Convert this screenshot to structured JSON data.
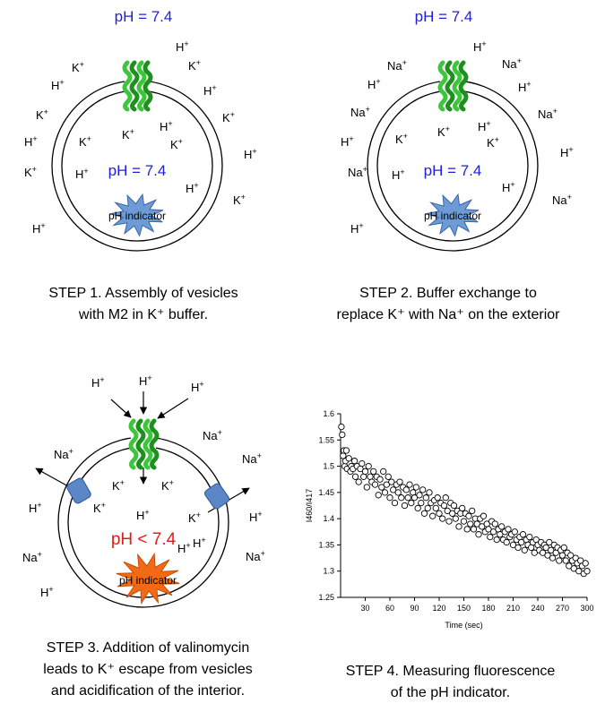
{
  "labels": {
    "ph_outside": "pH = 7.4",
    "ph_inside": "pH = 7.4",
    "ph_acidic": "pH < 7.4",
    "indicator": "pH indicator",
    "h": "H",
    "k": "K",
    "na": "Na",
    "plus": "+"
  },
  "colors": {
    "ph_blue": "#1f1fd6",
    "ph_red": "#e21b1b",
    "helix_green": "#3cc63c",
    "indicator_blue": "#6d9bd6",
    "indicator_orange": "#f26a15",
    "valinomycin_blue": "#5b87c9"
  },
  "captions": {
    "step1": [
      "STEP 1.  Assembly of vesicles",
      "with M2 in K⁺ buffer."
    ],
    "step2": [
      "STEP 2. Buffer exchange to",
      "replace K⁺ with Na⁺ on the exterior"
    ],
    "step3": [
      "STEP 3. Addition of valinomycin",
      "leads to K⁺ escape from vesicles",
      "and acidification of the interior."
    ],
    "step4": [
      "STEP 4. Measuring fluorescence",
      "of the pH indicator."
    ]
  },
  "chart_data": {
    "type": "scatter",
    "title": "",
    "xlabel": "Time (sec)",
    "ylabel": "I460/I417",
    "xlim": [
      0,
      300
    ],
    "ylim": [
      1.25,
      1.6
    ],
    "xticks": [
      30,
      60,
      90,
      120,
      150,
      180,
      210,
      240,
      270,
      300
    ],
    "yticks": [
      1.25,
      1.3,
      1.35,
      1.4,
      1.45,
      1.5,
      1.55,
      1.6
    ],
    "grid": false,
    "marker": "open-circle",
    "series": [
      {
        "points": [
          [
            1,
            1.575
          ],
          [
            2,
            1.56
          ],
          [
            3,
            1.52
          ],
          [
            4,
            1.53
          ],
          [
            5,
            1.5
          ],
          [
            6,
            1.51
          ],
          [
            7,
            1.53
          ],
          [
            8,
            1.495
          ],
          [
            10,
            1.515
          ],
          [
            12,
            1.49
          ],
          [
            13,
            1.5
          ],
          [
            15,
            1.495
          ],
          [
            17,
            1.51
          ],
          [
            18,
            1.48
          ],
          [
            20,
            1.5
          ],
          [
            22,
            1.47
          ],
          [
            24,
            1.495
          ],
          [
            26,
            1.505
          ],
          [
            28,
            1.48
          ],
          [
            30,
            1.49
          ],
          [
            32,
            1.46
          ],
          [
            34,
            1.5
          ],
          [
            36,
            1.48
          ],
          [
            38,
            1.47
          ],
          [
            40,
            1.49
          ],
          [
            42,
            1.465
          ],
          [
            44,
            1.48
          ],
          [
            46,
            1.445
          ],
          [
            48,
            1.475
          ],
          [
            50,
            1.46
          ],
          [
            52,
            1.49
          ],
          [
            54,
            1.45
          ],
          [
            56,
            1.465
          ],
          [
            58,
            1.48
          ],
          [
            60,
            1.44
          ],
          [
            62,
            1.47
          ],
          [
            64,
            1.455
          ],
          [
            66,
            1.43
          ],
          [
            68,
            1.465
          ],
          [
            70,
            1.45
          ],
          [
            72,
            1.47
          ],
          [
            74,
            1.44
          ],
          [
            76,
            1.46
          ],
          [
            78,
            1.425
          ],
          [
            80,
            1.455
          ],
          [
            82,
            1.44
          ],
          [
            84,
            1.465
          ],
          [
            86,
            1.43
          ],
          [
            88,
            1.45
          ],
          [
            90,
            1.44
          ],
          [
            92,
            1.46
          ],
          [
            94,
            1.42
          ],
          [
            96,
            1.445
          ],
          [
            98,
            1.43
          ],
          [
            100,
            1.455
          ],
          [
            102,
            1.41
          ],
          [
            104,
            1.44
          ],
          [
            106,
            1.42
          ],
          [
            108,
            1.45
          ],
          [
            110,
            1.43
          ],
          [
            112,
            1.405
          ],
          [
            114,
            1.435
          ],
          [
            116,
            1.42
          ],
          [
            118,
            1.44
          ],
          [
            120,
            1.41
          ],
          [
            122,
            1.43
          ],
          [
            124,
            1.4
          ],
          [
            126,
            1.425
          ],
          [
            128,
            1.44
          ],
          [
            130,
            1.415
          ],
          [
            132,
            1.395
          ],
          [
            134,
            1.43
          ],
          [
            136,
            1.41
          ],
          [
            138,
            1.425
          ],
          [
            140,
            1.4
          ],
          [
            142,
            1.415
          ],
          [
            144,
            1.385
          ],
          [
            146,
            1.41
          ],
          [
            148,
            1.42
          ],
          [
            150,
            1.395
          ],
          [
            152,
            1.41
          ],
          [
            154,
            1.38
          ],
          [
            156,
            1.405
          ],
          [
            158,
            1.39
          ],
          [
            160,
            1.415
          ],
          [
            162,
            1.38
          ],
          [
            164,
            1.4
          ],
          [
            166,
            1.39
          ],
          [
            168,
            1.37
          ],
          [
            170,
            1.4
          ],
          [
            172,
            1.385
          ],
          [
            174,
            1.405
          ],
          [
            176,
            1.375
          ],
          [
            178,
            1.39
          ],
          [
            180,
            1.38
          ],
          [
            182,
            1.365
          ],
          [
            184,
            1.395
          ],
          [
            186,
            1.375
          ],
          [
            188,
            1.39
          ],
          [
            190,
            1.36
          ],
          [
            192,
            1.38
          ],
          [
            194,
            1.37
          ],
          [
            196,
            1.385
          ],
          [
            198,
            1.36
          ],
          [
            200,
            1.375
          ],
          [
            202,
            1.355
          ],
          [
            204,
            1.38
          ],
          [
            206,
            1.365
          ],
          [
            208,
            1.37
          ],
          [
            210,
            1.35
          ],
          [
            212,
            1.375
          ],
          [
            214,
            1.36
          ],
          [
            216,
            1.345
          ],
          [
            218,
            1.365
          ],
          [
            220,
            1.355
          ],
          [
            222,
            1.37
          ],
          [
            224,
            1.34
          ],
          [
            226,
            1.36
          ],
          [
            228,
            1.35
          ],
          [
            230,
            1.365
          ],
          [
            232,
            1.345
          ],
          [
            234,
            1.355
          ],
          [
            236,
            1.335
          ],
          [
            238,
            1.36
          ],
          [
            240,
            1.35
          ],
          [
            242,
            1.34
          ],
          [
            244,
            1.355
          ],
          [
            246,
            1.335
          ],
          [
            248,
            1.35
          ],
          [
            250,
            1.345
          ],
          [
            252,
            1.33
          ],
          [
            254,
            1.355
          ],
          [
            256,
            1.34
          ],
          [
            258,
            1.325
          ],
          [
            260,
            1.35
          ],
          [
            262,
            1.335
          ],
          [
            264,
            1.345
          ],
          [
            266,
            1.32
          ],
          [
            268,
            1.34
          ],
          [
            270,
            1.33
          ],
          [
            272,
            1.345
          ],
          [
            274,
            1.32
          ],
          [
            276,
            1.335
          ],
          [
            278,
            1.31
          ],
          [
            280,
            1.33
          ],
          [
            282,
            1.32
          ],
          [
            284,
            1.305
          ],
          [
            286,
            1.325
          ],
          [
            288,
            1.315
          ],
          [
            290,
            1.3
          ],
          [
            292,
            1.32
          ],
          [
            294,
            1.31
          ],
          [
            296,
            1.295
          ],
          [
            298,
            1.315
          ],
          [
            300,
            1.3
          ]
        ]
      }
    ]
  }
}
